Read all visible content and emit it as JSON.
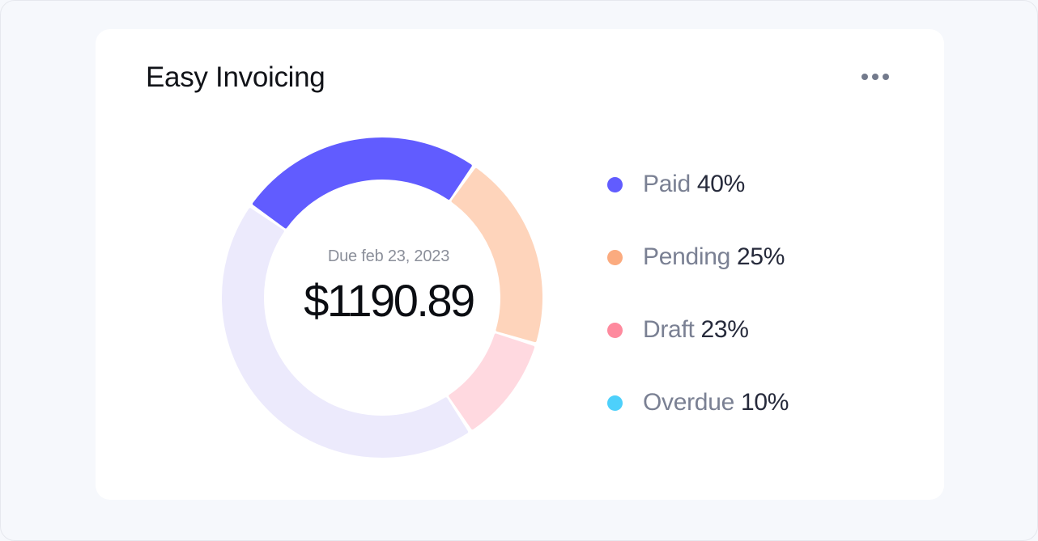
{
  "card": {
    "title": "Easy Invoicing",
    "menu_icon": "more-horizontal-icon"
  },
  "summary": {
    "due_text": "Due feb 23, 2023",
    "amount": "$1190.89"
  },
  "legend": [
    {
      "label": "Paid",
      "value": "40%",
      "color": "#615cff"
    },
    {
      "label": "Pending",
      "value": "25%",
      "color": "#fbab7f"
    },
    {
      "label": "Draft",
      "value": "23%",
      "color": "#fe8a9e"
    },
    {
      "label": "Overdue",
      "value": "10%",
      "color": "#4dd0fb"
    }
  ],
  "chart_data": {
    "type": "pie",
    "style": "donut",
    "segments": [
      {
        "value": 25,
        "color": "#615cff"
      },
      {
        "value": 20,
        "color": "#fed4bb"
      },
      {
        "value": 11,
        "color": "#ffd9e0"
      },
      {
        "value": 44,
        "color": "#eceafc"
      }
    ]
  }
}
